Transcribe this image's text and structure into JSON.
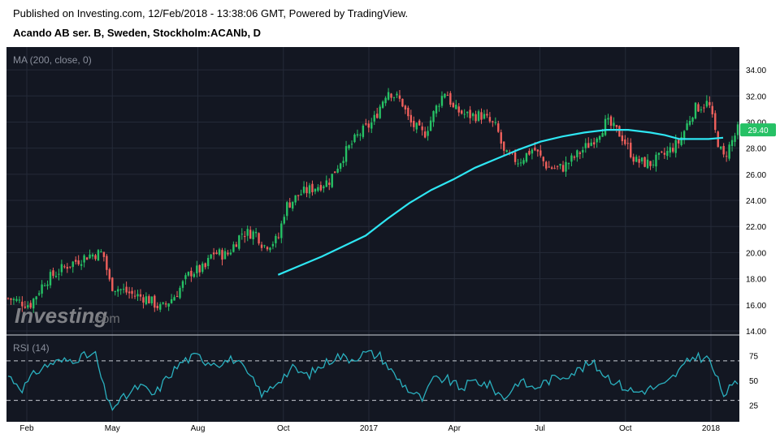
{
  "header": {
    "published": "Published on Investing.com, 12/Feb/2018 - 13:38:06 GMT, Powered by TradingView.",
    "title": "Acando AB ser. B, Sweden, Stockholm:ACANb, D"
  },
  "watermark": {
    "brand": "Investing",
    "suffix": ".com"
  },
  "colors": {
    "background": "#ffffff",
    "plot_bg": "#131722",
    "grid": "#242a38",
    "up": "#26c165",
    "down": "#f0605c",
    "ma": "#2ee6f2",
    "rsi": "#2ab0bf",
    "price_label_bg": "#26c165"
  },
  "chart_data": [
    {
      "type": "candlestick",
      "title": "Acando AB ser. B, Sweden, Stockholm:ACANb, D",
      "indicator_label": "MA (200, close, 0)",
      "x_ticks": [
        "Feb",
        "May",
        "Aug",
        "Oct",
        "2017",
        "Apr",
        "Jul",
        "Oct",
        "2018"
      ],
      "y_ticks": [
        "14.00",
        "16.00",
        "18.00",
        "20.00",
        "22.00",
        "24.00",
        "26.00",
        "28.00",
        "30.00",
        "32.00",
        "34.00"
      ],
      "ylim": [
        14,
        35
      ],
      "last_price": "29.40",
      "grid": true,
      "series": [
        {
          "type": "ohlc",
          "points": [
            {
              "t": 0.0,
              "v": 16.5
            },
            {
              "t": 0.03,
              "v": 16.0
            },
            {
              "t": 0.05,
              "v": 17.8
            },
            {
              "t": 0.08,
              "v": 19.0
            },
            {
              "t": 0.11,
              "v": 19.8
            },
            {
              "t": 0.13,
              "v": 20.0
            },
            {
              "t": 0.14,
              "v": 17.5
            },
            {
              "t": 0.17,
              "v": 16.8
            },
            {
              "t": 0.19,
              "v": 16.5
            },
            {
              "t": 0.21,
              "v": 15.7
            },
            {
              "t": 0.23,
              "v": 16.8
            },
            {
              "t": 0.25,
              "v": 18.5
            },
            {
              "t": 0.27,
              "v": 18.8
            },
            {
              "t": 0.28,
              "v": 20.0
            },
            {
              "t": 0.3,
              "v": 19.8
            },
            {
              "t": 0.32,
              "v": 21.5
            },
            {
              "t": 0.34,
              "v": 21.5
            },
            {
              "t": 0.35,
              "v": 20.5
            },
            {
              "t": 0.37,
              "v": 21.0
            },
            {
              "t": 0.38,
              "v": 23.5
            },
            {
              "t": 0.4,
              "v": 24.5
            },
            {
              "t": 0.42,
              "v": 25.0
            },
            {
              "t": 0.44,
              "v": 25.5
            },
            {
              "t": 0.46,
              "v": 27.5
            },
            {
              "t": 0.48,
              "v": 29.0
            },
            {
              "t": 0.5,
              "v": 30.0
            },
            {
              "t": 0.52,
              "v": 32.5
            },
            {
              "t": 0.54,
              "v": 31.5
            },
            {
              "t": 0.55,
              "v": 30.0
            },
            {
              "t": 0.57,
              "v": 29.0
            },
            {
              "t": 0.59,
              "v": 31.5
            },
            {
              "t": 0.6,
              "v": 32.5
            },
            {
              "t": 0.61,
              "v": 31.0
            },
            {
              "t": 0.63,
              "v": 30.5
            },
            {
              "t": 0.65,
              "v": 30.5
            },
            {
              "t": 0.67,
              "v": 29.5
            },
            {
              "t": 0.68,
              "v": 27.5
            },
            {
              "t": 0.7,
              "v": 27.0
            },
            {
              "t": 0.72,
              "v": 28.0
            },
            {
              "t": 0.74,
              "v": 26.5
            },
            {
              "t": 0.76,
              "v": 26.5
            },
            {
              "t": 0.78,
              "v": 27.5
            },
            {
              "t": 0.8,
              "v": 28.5
            },
            {
              "t": 0.82,
              "v": 30.0
            },
            {
              "t": 0.84,
              "v": 29.0
            },
            {
              "t": 0.86,
              "v": 27.0
            },
            {
              "t": 0.88,
              "v": 26.8
            },
            {
              "t": 0.9,
              "v": 27.5
            },
            {
              "t": 0.92,
              "v": 28.5
            },
            {
              "t": 0.94,
              "v": 31.0
            },
            {
              "t": 0.96,
              "v": 31.5
            },
            {
              "t": 0.97,
              "v": 29.0
            },
            {
              "t": 0.98,
              "v": 27.2
            },
            {
              "t": 1.0,
              "v": 29.4
            }
          ]
        },
        {
          "name": "MA (200, close, 0)",
          "type": "line",
          "points": [
            {
              "t": 0.37,
              "v": 18.3
            },
            {
              "t": 0.4,
              "v": 19.0
            },
            {
              "t": 0.43,
              "v": 19.7
            },
            {
              "t": 0.46,
              "v": 20.5
            },
            {
              "t": 0.49,
              "v": 21.3
            },
            {
              "t": 0.52,
              "v": 22.6
            },
            {
              "t": 0.55,
              "v": 23.8
            },
            {
              "t": 0.58,
              "v": 24.8
            },
            {
              "t": 0.61,
              "v": 25.6
            },
            {
              "t": 0.64,
              "v": 26.5
            },
            {
              "t": 0.67,
              "v": 27.2
            },
            {
              "t": 0.7,
              "v": 27.9
            },
            {
              "t": 0.73,
              "v": 28.5
            },
            {
              "t": 0.76,
              "v": 28.9
            },
            {
              "t": 0.79,
              "v": 29.2
            },
            {
              "t": 0.82,
              "v": 29.4
            },
            {
              "t": 0.85,
              "v": 29.4
            },
            {
              "t": 0.88,
              "v": 29.2
            },
            {
              "t": 0.9,
              "v": 29.0
            },
            {
              "t": 0.92,
              "v": 28.7
            },
            {
              "t": 0.94,
              "v": 28.7
            },
            {
              "t": 0.96,
              "v": 28.7
            },
            {
              "t": 0.98,
              "v": 28.8
            }
          ]
        }
      ]
    },
    {
      "type": "line",
      "indicator_label": "RSI (14)",
      "y_ticks": [
        "25",
        "50",
        "75"
      ],
      "ylim": [
        10,
        92
      ],
      "reference_lines": [
        30,
        70
      ],
      "series": [
        {
          "name": "RSI (14)",
          "points": [
            {
              "t": 0.0,
              "v": 55
            },
            {
              "t": 0.02,
              "v": 42
            },
            {
              "t": 0.04,
              "v": 60
            },
            {
              "t": 0.06,
              "v": 68
            },
            {
              "t": 0.08,
              "v": 70
            },
            {
              "t": 0.1,
              "v": 74
            },
            {
              "t": 0.12,
              "v": 76
            },
            {
              "t": 0.13,
              "v": 45
            },
            {
              "t": 0.14,
              "v": 22
            },
            {
              "t": 0.16,
              "v": 33
            },
            {
              "t": 0.18,
              "v": 45
            },
            {
              "t": 0.2,
              "v": 35
            },
            {
              "t": 0.22,
              "v": 55
            },
            {
              "t": 0.24,
              "v": 70
            },
            {
              "t": 0.26,
              "v": 75
            },
            {
              "t": 0.27,
              "v": 70
            },
            {
              "t": 0.29,
              "v": 68
            },
            {
              "t": 0.31,
              "v": 72
            },
            {
              "t": 0.33,
              "v": 55
            },
            {
              "t": 0.35,
              "v": 35
            },
            {
              "t": 0.37,
              "v": 50
            },
            {
              "t": 0.39,
              "v": 62
            },
            {
              "t": 0.41,
              "v": 55
            },
            {
              "t": 0.43,
              "v": 65
            },
            {
              "t": 0.45,
              "v": 75
            },
            {
              "t": 0.47,
              "v": 72
            },
            {
              "t": 0.49,
              "v": 78
            },
            {
              "t": 0.51,
              "v": 75
            },
            {
              "t": 0.53,
              "v": 55
            },
            {
              "t": 0.55,
              "v": 40
            },
            {
              "t": 0.57,
              "v": 30
            },
            {
              "t": 0.58,
              "v": 50
            },
            {
              "t": 0.6,
              "v": 52
            },
            {
              "t": 0.62,
              "v": 42
            },
            {
              "t": 0.64,
              "v": 50
            },
            {
              "t": 0.66,
              "v": 45
            },
            {
              "t": 0.68,
              "v": 32
            },
            {
              "t": 0.7,
              "v": 50
            },
            {
              "t": 0.72,
              "v": 42
            },
            {
              "t": 0.74,
              "v": 50
            },
            {
              "t": 0.76,
              "v": 55
            },
            {
              "t": 0.78,
              "v": 60
            },
            {
              "t": 0.8,
              "v": 68
            },
            {
              "t": 0.82,
              "v": 55
            },
            {
              "t": 0.84,
              "v": 45
            },
            {
              "t": 0.86,
              "v": 38
            },
            {
              "t": 0.88,
              "v": 42
            },
            {
              "t": 0.9,
              "v": 45
            },
            {
              "t": 0.92,
              "v": 60
            },
            {
              "t": 0.94,
              "v": 75
            },
            {
              "t": 0.96,
              "v": 72
            },
            {
              "t": 0.97,
              "v": 55
            },
            {
              "t": 0.98,
              "v": 36
            },
            {
              "t": 0.99,
              "v": 42
            },
            {
              "t": 1.0,
              "v": 48
            }
          ]
        }
      ]
    }
  ]
}
